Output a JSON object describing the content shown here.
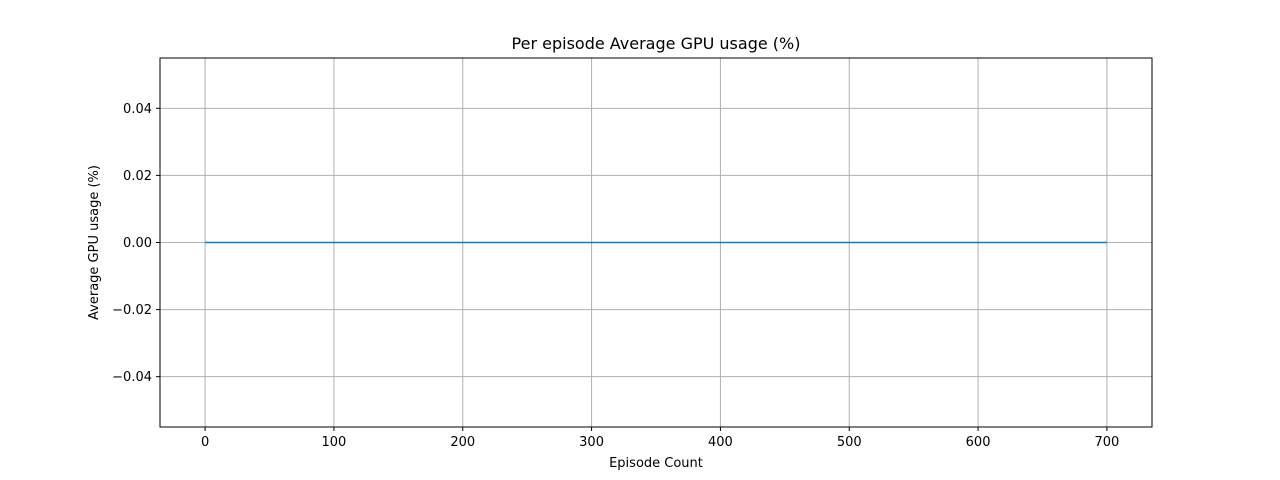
{
  "chart_data": {
    "type": "line",
    "title": "Per episode Average GPU usage (%)",
    "xlabel": "Episode Count",
    "ylabel": "Average GPU usage (%)",
    "xlim": [
      -35,
      735
    ],
    "ylim": [
      -0.055,
      0.055
    ],
    "x_ticks": [
      0,
      100,
      200,
      300,
      400,
      500,
      600,
      700
    ],
    "x_tick_labels": [
      "0",
      "100",
      "200",
      "300",
      "400",
      "500",
      "600",
      "700"
    ],
    "y_ticks": [
      -0.04,
      -0.02,
      0.0,
      0.02,
      0.04
    ],
    "y_tick_labels": [
      "−0.04",
      "−0.02",
      "0.00",
      "0.02",
      "0.04"
    ],
    "grid": true,
    "series": [
      {
        "color": "#1f77b4",
        "x": [
          0,
          700
        ],
        "y": [
          0.0,
          0.0
        ]
      }
    ]
  }
}
